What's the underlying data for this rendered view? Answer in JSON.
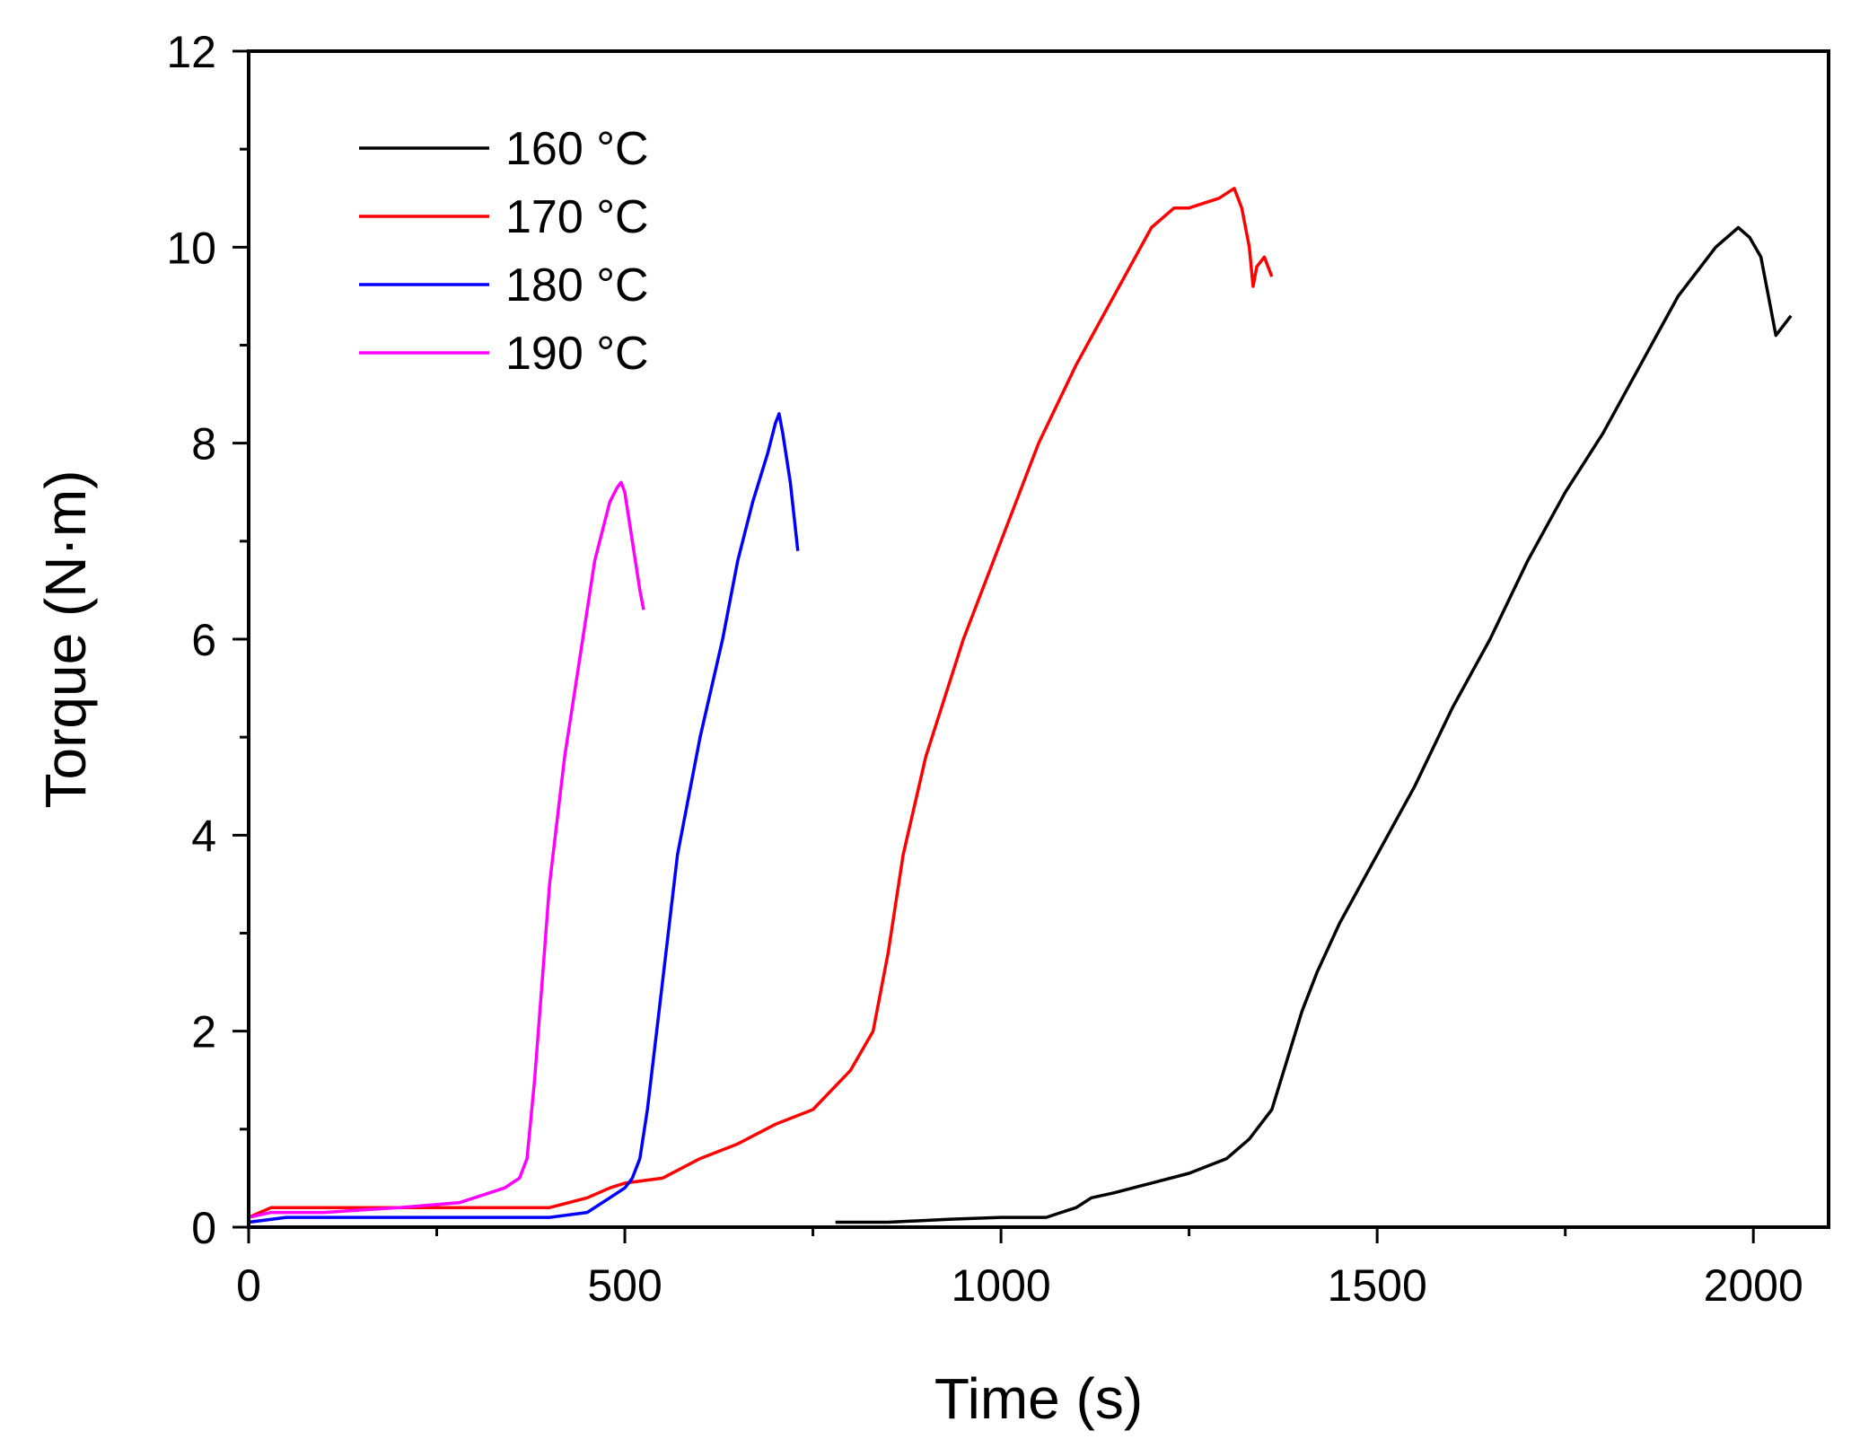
{
  "chart_data": {
    "type": "line",
    "title": "",
    "xlabel": "Time (s)",
    "ylabel": "Torque (N·m)",
    "xlim": [
      0,
      2100
    ],
    "ylim": [
      0,
      12
    ],
    "xticks": [
      0,
      500,
      1000,
      1500,
      2000
    ],
    "xtick_labels": [
      "0",
      "500",
      "1000",
      "1500",
      "2000"
    ],
    "yticks": [
      0,
      2,
      4,
      6,
      8,
      10,
      12
    ],
    "ytick_labels": [
      "0",
      "2",
      "4",
      "6",
      "8",
      "10",
      "12"
    ],
    "grid": false,
    "legend_position": "top-left",
    "series": [
      {
        "name": "160 °C",
        "color": "#000000",
        "x": [
          780,
          850,
          930,
          1000,
          1060,
          1080,
          1100,
          1120,
          1150,
          1200,
          1250,
          1300,
          1330,
          1360,
          1380,
          1400,
          1420,
          1450,
          1500,
          1550,
          1600,
          1650,
          1700,
          1750,
          1800,
          1850,
          1900,
          1950,
          1980,
          1995,
          2010,
          2020,
          2030,
          2040,
          2050
        ],
        "y": [
          0.05,
          0.05,
          0.08,
          0.1,
          0.1,
          0.15,
          0.2,
          0.3,
          0.35,
          0.45,
          0.55,
          0.7,
          0.9,
          1.2,
          1.7,
          2.2,
          2.6,
          3.1,
          3.8,
          4.5,
          5.3,
          6.0,
          6.8,
          7.5,
          8.1,
          8.8,
          9.5,
          10.0,
          10.2,
          10.1,
          9.9,
          9.5,
          9.1,
          9.2,
          9.3
        ]
      },
      {
        "name": "170 °C",
        "color": "#ff0000",
        "x": [
          0,
          30,
          100,
          200,
          300,
          400,
          450,
          480,
          500,
          550,
          600,
          650,
          700,
          750,
          800,
          830,
          850,
          870,
          900,
          950,
          1000,
          1050,
          1100,
          1150,
          1200,
          1230,
          1250,
          1270,
          1290,
          1300,
          1310,
          1320,
          1330,
          1335,
          1340,
          1350,
          1360
        ],
        "y": [
          0.1,
          0.2,
          0.2,
          0.2,
          0.2,
          0.2,
          0.3,
          0.4,
          0.45,
          0.5,
          0.7,
          0.85,
          1.05,
          1.2,
          1.6,
          2.0,
          2.8,
          3.8,
          4.8,
          6.0,
          7.0,
          8.0,
          8.8,
          9.5,
          10.2,
          10.4,
          10.4,
          10.45,
          10.5,
          10.55,
          10.6,
          10.4,
          10.0,
          9.6,
          9.8,
          9.9,
          9.7
        ]
      },
      {
        "name": "180 °C",
        "color": "#0000ff",
        "x": [
          0,
          50,
          100,
          200,
          300,
          400,
          450,
          480,
          500,
          510,
          520,
          530,
          550,
          570,
          600,
          630,
          650,
          670,
          690,
          700,
          705,
          710,
          720,
          730
        ],
        "y": [
          0.05,
          0.1,
          0.1,
          0.1,
          0.1,
          0.1,
          0.15,
          0.3,
          0.4,
          0.5,
          0.7,
          1.2,
          2.5,
          3.8,
          5.0,
          6.0,
          6.8,
          7.4,
          7.9,
          8.2,
          8.3,
          8.1,
          7.6,
          6.9
        ]
      },
      {
        "name": "190 °C",
        "color": "#ff00ff",
        "x": [
          0,
          30,
          100,
          200,
          280,
          300,
          340,
          360,
          370,
          380,
          390,
          400,
          420,
          440,
          460,
          480,
          490,
          495,
          500,
          510,
          520,
          525
        ],
        "y": [
          0.1,
          0.15,
          0.15,
          0.2,
          0.25,
          0.3,
          0.4,
          0.5,
          0.7,
          1.5,
          2.5,
          3.5,
          4.8,
          5.8,
          6.8,
          7.4,
          7.55,
          7.6,
          7.5,
          7.0,
          6.5,
          6.3
        ]
      }
    ]
  }
}
